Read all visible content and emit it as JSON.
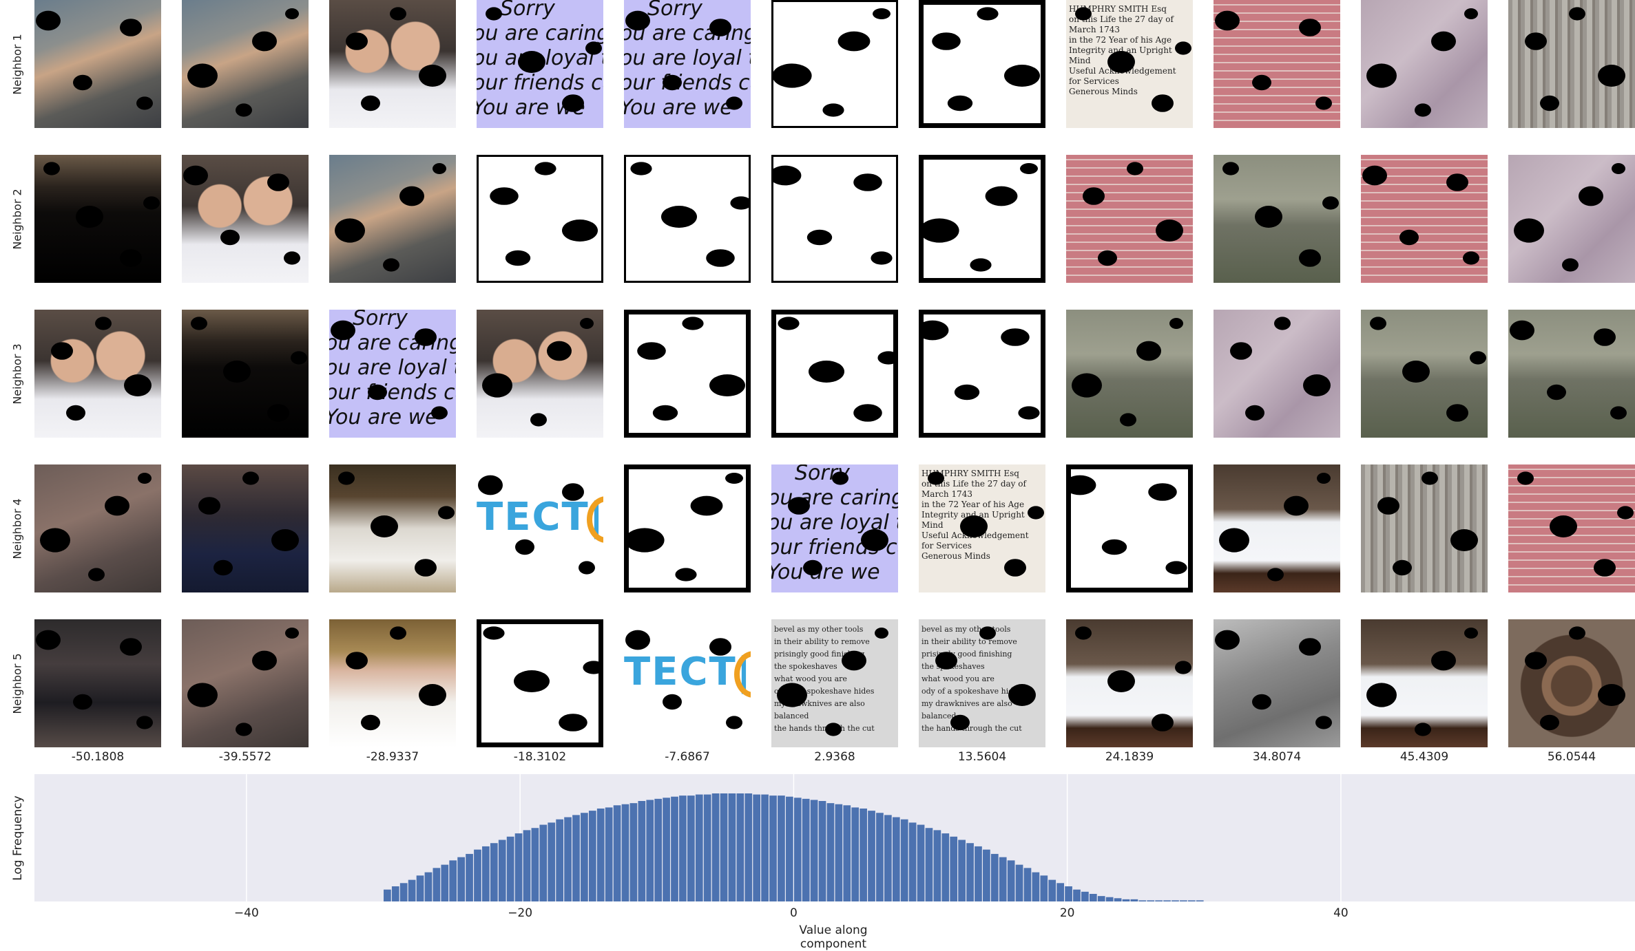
{
  "chart_data": [
    {
      "type": "image_grid",
      "row_labels": [
        "Neighbor 1",
        "Neighbor 2",
        "Neighbor 3",
        "Neighbor 4",
        "Neighbor 5"
      ],
      "column_labels": [
        "-50.1808",
        "-39.5572",
        "-28.9337",
        "-18.3102",
        "-7.6867",
        "2.9368",
        "13.5604",
        "24.1839",
        "34.8074",
        "45.4309",
        "56.0544"
      ],
      "tiles": [
        [
          "family-photo",
          "family-photo",
          "two-girls-photo",
          "purple-text-card",
          "purple-text-card",
          "white-mask",
          "white-mask",
          "old-document",
          "pink-brick-wall",
          "pink-stone-slab",
          "wooden-door-hinge"
        ],
        [
          "dark-room",
          "two-girls-photo",
          "family-photo",
          "white-mask",
          "white-mask",
          "white-mask",
          "white-mask",
          "pink-brick-wall",
          "carved-stone-text",
          "pink-brick-wall",
          "pink-stone-slab"
        ],
        [
          "two-girls-photo",
          "dark-room",
          "purple-text-card",
          "two-girls-photo",
          "white-mask",
          "white-mask",
          "white-mask",
          "carved-stone-text",
          "pink-stone-slab",
          "carved-stone-text",
          "carved-stone-text"
        ],
        [
          "boy-closeup",
          "woman-dark",
          "man-white-shirt",
          "blue-logo",
          "white-mask",
          "purple-text-card",
          "old-document",
          "white-mask",
          "snow-fence",
          "wooden-door-hinge",
          "pink-brick-wall"
        ],
        [
          "dark-figure",
          "boy-closeup",
          "man-bowtie",
          "white-mask",
          "blue-logo",
          "book-page-text",
          "book-page-text",
          "snow-fence",
          "gray-mask",
          "snow-fence",
          "manhole-cover"
        ]
      ],
      "title": "",
      "text_snippets": {
        "card_lines": [
          "Sorry",
          "ou are caring",
          "ou are loyal to",
          "our friends ca",
          "You are we"
        ],
        "doc_lines": [
          "HUMPHRY SMITH Esq",
          "on this Life the 27 day of March 1743",
          "in the 72 Year of his Age",
          "Integrity and an Upright Mind",
          "Useful Acknowledgement for Services",
          "Generous Minds"
        ],
        "book_lines": [
          "bevel as my other tools",
          "in their ability to remove",
          "prisingly good finishing",
          "the spokeshaves",
          "what wood you are",
          "ody of a spokeshave hides",
          "my drawknives are also balanced",
          "the hands through the cut"
        ],
        "logo": "TECT|"
      }
    },
    {
      "type": "bar",
      "xlabel": "Value along component",
      "ylabel": "Log Frequency",
      "xlim": [
        -55.5,
        61.5
      ],
      "xticks": [
        -40,
        -20,
        0,
        20,
        40
      ],
      "grid": true,
      "bin_width": 0.6,
      "x_range": [
        -30,
        30
      ],
      "values": [
        0.11,
        0.14,
        0.17,
        0.2,
        0.24,
        0.27,
        0.31,
        0.34,
        0.38,
        0.41,
        0.44,
        0.48,
        0.51,
        0.54,
        0.57,
        0.6,
        0.63,
        0.66,
        0.68,
        0.71,
        0.73,
        0.76,
        0.78,
        0.8,
        0.82,
        0.84,
        0.86,
        0.87,
        0.89,
        0.9,
        0.91,
        0.93,
        0.94,
        0.95,
        0.96,
        0.97,
        0.98,
        0.98,
        0.99,
        0.99,
        1.0,
        1.0,
        1.0,
        1.0,
        1.0,
        0.99,
        0.99,
        0.98,
        0.98,
        0.97,
        0.96,
        0.95,
        0.94,
        0.93,
        0.91,
        0.9,
        0.89,
        0.87,
        0.86,
        0.84,
        0.82,
        0.8,
        0.78,
        0.76,
        0.73,
        0.71,
        0.68,
        0.66,
        0.63,
        0.6,
        0.57,
        0.54,
        0.51,
        0.48,
        0.44,
        0.41,
        0.38,
        0.34,
        0.31,
        0.27,
        0.24,
        0.2,
        0.17,
        0.14,
        0.11,
        0.09,
        0.07,
        0.05,
        0.04,
        0.03,
        0.02,
        0.02,
        0.01,
        0.01,
        0.01,
        0.01,
        0.01,
        0.01,
        0.01,
        0.01
      ],
      "bar_color": "#4c72b0",
      "background": "#eaeaf2"
    }
  ]
}
